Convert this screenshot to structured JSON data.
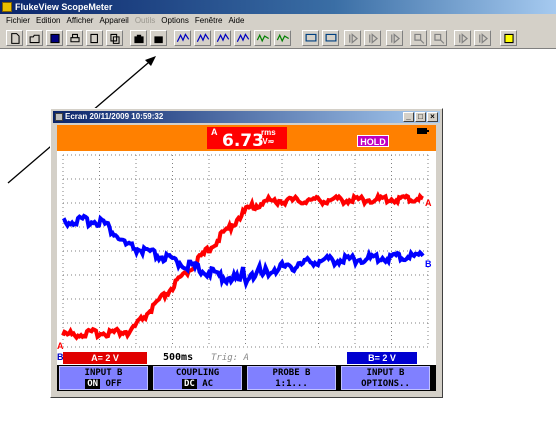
{
  "app": {
    "title": "FlukeView ScopeMeter"
  },
  "menu": [
    {
      "label": "Fichier",
      "disabled": false
    },
    {
      "label": "Edition",
      "disabled": false
    },
    {
      "label": "Afficher",
      "disabled": false
    },
    {
      "label": "Appareil",
      "disabled": false
    },
    {
      "label": "Outils",
      "disabled": true
    },
    {
      "label": "Options",
      "disabled": false
    },
    {
      "label": "Fenêtre",
      "disabled": false
    },
    {
      "label": "Aide",
      "disabled": false
    }
  ],
  "toolbar_icons": [
    "new-icon",
    "open-icon",
    "save-icon",
    "print-icon",
    "print-preview-icon",
    "copy-icon",
    "camera-icon",
    "camera-settings-icon",
    "waveform-a-icon",
    "waveform-ab-icon",
    "waveform-ab2-icon",
    "waveform-icon",
    "envelope-icon",
    "envelope-settings-icon",
    "monitor-icon",
    "monitor-settings-icon",
    "stop-icon",
    "red-flag-icon",
    "start-icon",
    "zoom-in-icon",
    "zoom-out-icon",
    "first-icon",
    "last-icon",
    "help-icon"
  ],
  "window": {
    "title": "Ecran 20/11/2009 10:59:32",
    "minimize": "_",
    "maximize": "□",
    "close": "×"
  },
  "scope": {
    "reading": {
      "channel": "A",
      "value": "6.73",
      "unit_top": "rms",
      "unit_bottom": "V≂"
    },
    "hold": "HOLD",
    "channel_a_marker": "A",
    "channel_b_marker": "B",
    "trace_a_end_label": "A",
    "trace_b_end_label": "B",
    "status": {
      "a_scale": "A= 2 V",
      "timebase": "500ms",
      "trigger": "Trig: A",
      "b_scale": "B= 2 V"
    },
    "softkeys": [
      {
        "line1": "INPUT B",
        "on": "ON",
        "off": "OFF"
      },
      {
        "line1": "COUPLING",
        "on": "DC",
        "off": "AC"
      },
      {
        "line1": "PROBE B",
        "line2": "1:1..."
      },
      {
        "line1": "INPUT B",
        "line2": "OPTIONS.."
      }
    ]
  },
  "colors": {
    "trace_a": "#ff0000",
    "trace_b": "#0000ff",
    "header": "#ff8000",
    "hold": "#c000c0",
    "softkey": "#8080ff"
  }
}
